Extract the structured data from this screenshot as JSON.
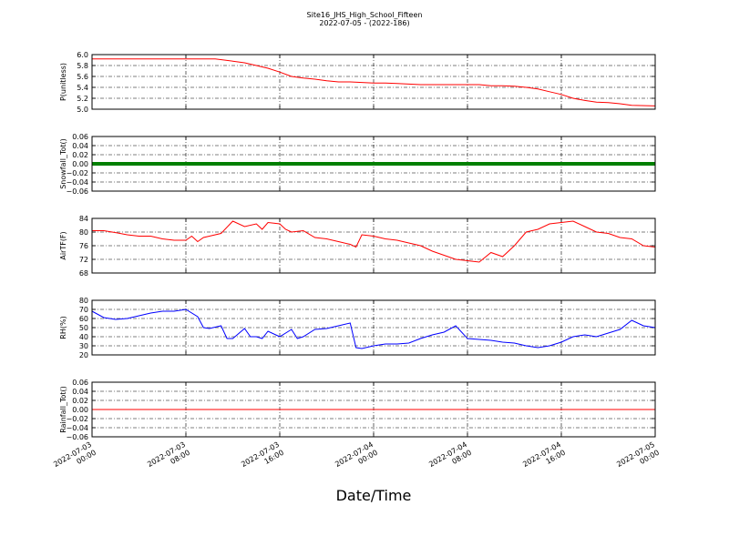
{
  "header": {
    "title": "Site16_JHS_High_School_Fifteen",
    "subtitle": "2022-07-05 - (2022-186)"
  },
  "chart_data": {
    "type": "line",
    "xlabel": "Date/Time",
    "x_range": [
      "2022-07-03T00:00",
      "2022-07-05T00:00"
    ],
    "x_ticks": [
      {
        "value": "2022-07-03T00:00",
        "label": [
          "2022-07-03",
          "00:00"
        ]
      },
      {
        "value": "2022-07-03T08:00",
        "label": [
          "2022-07-03",
          "08:00"
        ]
      },
      {
        "value": "2022-07-03T16:00",
        "label": [
          "2022-07-03",
          "16:00"
        ]
      },
      {
        "value": "2022-07-04T00:00",
        "label": [
          "2022-07-04",
          "00:00"
        ]
      },
      {
        "value": "2022-07-04T08:00",
        "label": [
          "2022-07-04",
          "08:00"
        ]
      },
      {
        "value": "2022-07-04T16:00",
        "label": [
          "2022-07-04",
          "16:00"
        ]
      },
      {
        "value": "2022-07-05T00:00",
        "label": [
          "2022-07-05",
          "00:00"
        ]
      }
    ],
    "grid": true,
    "panels": [
      {
        "ylabel": "P(unitless)",
        "ylim": [
          5.0,
          6.0
        ],
        "yticks": [
          "5.0",
          "5.2",
          "5.4",
          "5.6",
          "5.8",
          "6.0"
        ],
        "color": "#ff0000",
        "style": "line",
        "x": [
          "2022-07-03T00:00",
          "2022-07-03T03:00",
          "2022-07-03T06:00",
          "2022-07-03T09:00",
          "2022-07-03T10:30",
          "2022-07-03T12:00",
          "2022-07-03T13:00",
          "2022-07-03T14:00",
          "2022-07-03T15:00",
          "2022-07-03T16:00",
          "2022-07-03T17:00",
          "2022-07-03T18:00",
          "2022-07-03T19:00",
          "2022-07-03T20:00",
          "2022-07-03T21:00",
          "2022-07-03T22:00",
          "2022-07-04T00:00",
          "2022-07-04T01:00",
          "2022-07-04T02:00",
          "2022-07-04T04:00",
          "2022-07-04T06:00",
          "2022-07-04T08:00",
          "2022-07-04T09:00",
          "2022-07-04T10:00",
          "2022-07-04T11:00",
          "2022-07-04T12:00",
          "2022-07-04T13:00",
          "2022-07-04T14:00",
          "2022-07-04T15:00",
          "2022-07-04T16:00",
          "2022-07-04T17:00",
          "2022-07-04T18:00",
          "2022-07-04T19:00",
          "2022-07-04T20:00",
          "2022-07-04T21:00",
          "2022-07-04T22:00",
          "2022-07-05T00:00"
        ],
        "values": [
          5.92,
          5.92,
          5.92,
          5.92,
          5.92,
          5.88,
          5.85,
          5.8,
          5.75,
          5.68,
          5.6,
          5.57,
          5.55,
          5.52,
          5.5,
          5.5,
          5.48,
          5.48,
          5.47,
          5.45,
          5.45,
          5.45,
          5.45,
          5.43,
          5.43,
          5.42,
          5.4,
          5.37,
          5.32,
          5.27,
          5.2,
          5.16,
          5.13,
          5.12,
          5.1,
          5.07,
          5.06
        ]
      },
      {
        "ylabel": "Snowfall_Tot()",
        "ylim": [
          -0.06,
          0.06
        ],
        "yticks": [
          "−0.06",
          "−0.04",
          "−0.02",
          "0.00",
          "0.02",
          "0.04",
          "0.06"
        ],
        "color": "#007f00",
        "style": "markers",
        "x": [
          "2022-07-03T00:00",
          "2022-07-05T00:00"
        ],
        "values": [
          0.0,
          0.0
        ]
      },
      {
        "ylabel": "AirTF(F)",
        "ylim": [
          64,
          84
        ],
        "yticks": [
          "68",
          "72",
          "76",
          "80",
          "84"
        ],
        "color": "#ff0000",
        "style": "line",
        "x": [
          "2022-07-03T00:00",
          "2022-07-03T01:00",
          "2022-07-03T02:00",
          "2022-07-03T03:00",
          "2022-07-03T04:00",
          "2022-07-03T05:00",
          "2022-07-03T06:00",
          "2022-07-03T07:00",
          "2022-07-03T08:00",
          "2022-07-03T08:30",
          "2022-07-03T09:00",
          "2022-07-03T09:30",
          "2022-07-03T10:00",
          "2022-07-03T11:00",
          "2022-07-03T12:00",
          "2022-07-03T13:00",
          "2022-07-03T14:00",
          "2022-07-03T14:30",
          "2022-07-03T15:00",
          "2022-07-03T16:00",
          "2022-07-03T16:30",
          "2022-07-03T17:00",
          "2022-07-03T18:00",
          "2022-07-03T19:00",
          "2022-07-03T20:00",
          "2022-07-03T21:00",
          "2022-07-03T22:00",
          "2022-07-03T22:30",
          "2022-07-03T23:00",
          "2022-07-04T00:00",
          "2022-07-04T01:00",
          "2022-07-04T02:00",
          "2022-07-04T03:00",
          "2022-07-04T04:00",
          "2022-07-04T05:00",
          "2022-07-04T06:00",
          "2022-07-04T07:00",
          "2022-07-04T08:00",
          "2022-07-04T09:00",
          "2022-07-04T10:00",
          "2022-07-04T11:00",
          "2022-07-04T12:00",
          "2022-07-04T13:00",
          "2022-07-04T14:00",
          "2022-07-04T15:00",
          "2022-07-04T16:00",
          "2022-07-04T17:00",
          "2022-07-04T18:00",
          "2022-07-04T19:00",
          "2022-07-04T20:00",
          "2022-07-04T21:00",
          "2022-07-04T22:00",
          "2022-07-04T23:00",
          "2022-07-05T00:00"
        ],
        "values": [
          79.5,
          79.5,
          78.8,
          78,
          77.5,
          77.5,
          76.5,
          76,
          76,
          77.5,
          75.5,
          77,
          77.5,
          78.5,
          83,
          81,
          82,
          80,
          82.5,
          82,
          80,
          79,
          79.5,
          77,
          76.5,
          75.5,
          74.5,
          73.5,
          78,
          77.5,
          76.5,
          76,
          75,
          74,
          72,
          70.5,
          69,
          68.5,
          68,
          71.5,
          70,
          74,
          79,
          80,
          82,
          82.5,
          83,
          81,
          79,
          78.5,
          77,
          76.5,
          74,
          73.5
        ]
      },
      {
        "ylabel": "RH(%)",
        "ylim": [
          20,
          80
        ],
        "yticks": [
          "20",
          "30",
          "40",
          "50",
          "60",
          "70",
          "80"
        ],
        "color": "#0000ff",
        "style": "line",
        "x": [
          "2022-07-03T00:00",
          "2022-07-03T01:00",
          "2022-07-03T02:00",
          "2022-07-03T03:00",
          "2022-07-03T04:00",
          "2022-07-03T05:00",
          "2022-07-03T06:00",
          "2022-07-03T07:00",
          "2022-07-03T08:00",
          "2022-07-03T09:00",
          "2022-07-03T09:30",
          "2022-07-03T10:00",
          "2022-07-03T11:00",
          "2022-07-03T11:30",
          "2022-07-03T12:00",
          "2022-07-03T13:00",
          "2022-07-03T13:30",
          "2022-07-03T14:00",
          "2022-07-03T14:30",
          "2022-07-03T15:00",
          "2022-07-03T16:00",
          "2022-07-03T17:00",
          "2022-07-03T17:30",
          "2022-07-03T18:00",
          "2022-07-03T19:00",
          "2022-07-03T20:00",
          "2022-07-03T21:00",
          "2022-07-03T22:00",
          "2022-07-03T22:30",
          "2022-07-03T23:00",
          "2022-07-04T00:00",
          "2022-07-04T01:00",
          "2022-07-04T02:00",
          "2022-07-04T03:00",
          "2022-07-04T04:00",
          "2022-07-04T05:00",
          "2022-07-04T06:00",
          "2022-07-04T07:00",
          "2022-07-04T08:00",
          "2022-07-04T09:00",
          "2022-07-04T10:00",
          "2022-07-04T11:00",
          "2022-07-04T12:00",
          "2022-07-04T13:00",
          "2022-07-04T14:00",
          "2022-07-04T15:00",
          "2022-07-04T16:00",
          "2022-07-04T17:00",
          "2022-07-04T18:00",
          "2022-07-04T19:00",
          "2022-07-04T20:00",
          "2022-07-04T21:00",
          "2022-07-04T22:00",
          "2022-07-04T23:00",
          "2022-07-05T00:00"
        ],
        "values": [
          68,
          61,
          59,
          60,
          63,
          66,
          68,
          68,
          70,
          62,
          50,
          49,
          52,
          38,
          38,
          49,
          40,
          40,
          38,
          46,
          40,
          48,
          38,
          40,
          48,
          49,
          52,
          55,
          28,
          27,
          30,
          32,
          32,
          33,
          38,
          42,
          45,
          52,
          38,
          37,
          36,
          34,
          33,
          30,
          28,
          30,
          34,
          40,
          42,
          40,
          44,
          48,
          58,
          52,
          50
        ]
      },
      {
        "ylabel": "Rainfall_Tot()",
        "ylim": [
          -0.06,
          0.06
        ],
        "yticks": [
          "−0.06",
          "−0.04",
          "−0.02",
          "0.00",
          "0.02",
          "0.04",
          "0.06"
        ],
        "color": "#ff0000",
        "style": "line",
        "x": [
          "2022-07-03T00:00",
          "2022-07-05T00:00"
        ],
        "values": [
          0.0,
          0.0
        ]
      }
    ]
  }
}
